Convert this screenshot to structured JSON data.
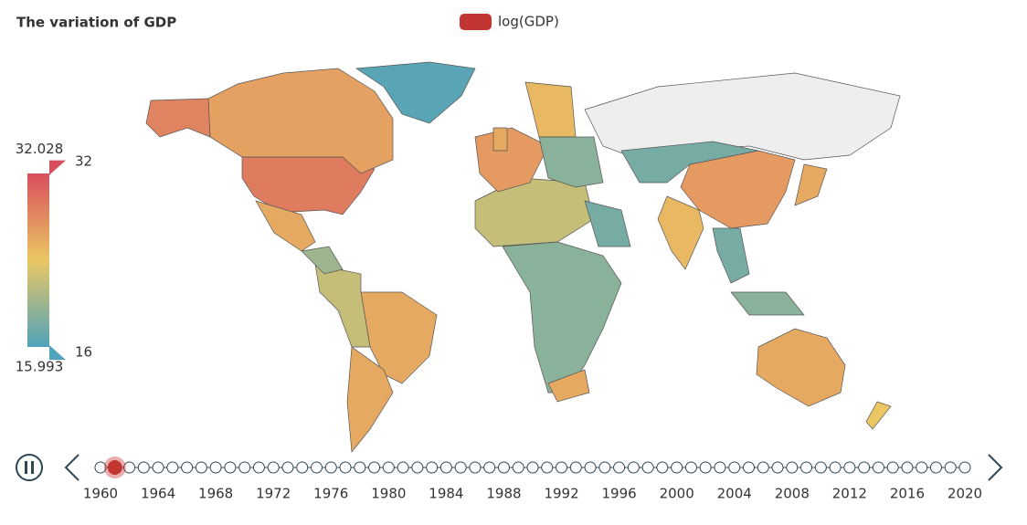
{
  "chart_data": {
    "type": "map",
    "title": "The variation of GDP",
    "series": [
      {
        "name": "log(GDP)",
        "color": "#c23531",
        "values": [
          29,
          26.5,
          28.5,
          16.5,
          26,
          26,
          26,
          22,
          null,
          27,
          25,
          22,
          19,
          26,
          26,
          27,
          25,
          19,
          18,
          18,
          18,
          19,
          26,
          26,
          20,
          24
        ]
      }
    ],
    "visual_map": {
      "range": [
        16,
        32
      ],
      "selected": [
        15.993,
        32.028
      ],
      "colors": [
        "#50a3ba",
        "#eac763",
        "#d94e5d"
      ]
    },
    "timeline": {
      "years": [
        1960,
        1961,
        1962,
        1963,
        1964,
        1965,
        1966,
        1967,
        1968,
        1969,
        1970,
        1971,
        1972,
        1973,
        1974,
        1975,
        1976,
        1977,
        1978,
        1979,
        1980,
        1981,
        1982,
        1983,
        1984,
        1985,
        1986,
        1987,
        1988,
        1989,
        1990,
        1991,
        1992,
        1993,
        1994,
        1995,
        1996,
        1997,
        1998,
        1999,
        2000,
        2001,
        2002,
        2003,
        2004,
        2005,
        2006,
        2007,
        2008,
        2009,
        2010,
        2011,
        2012,
        2013,
        2014,
        2015,
        2016,
        2017,
        2018,
        2019,
        2020
      ],
      "current": 1
    }
  }
}
